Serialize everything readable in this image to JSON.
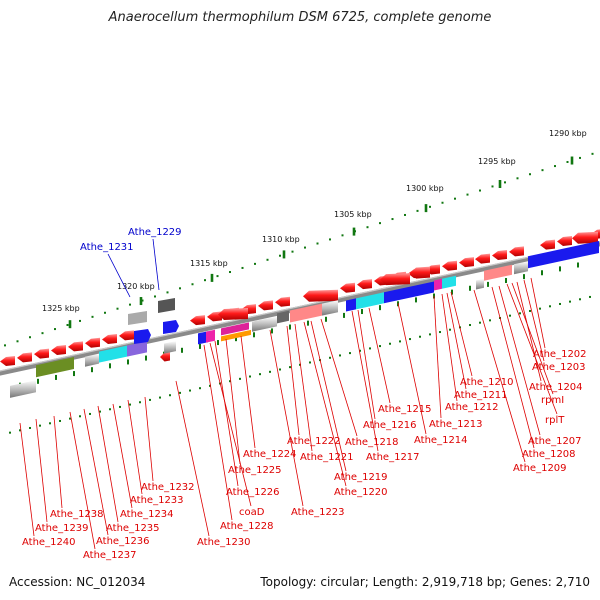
{
  "title": "Anaerocellum thermophilum DSM 6725, complete genome",
  "footer": {
    "accession": "Accession: NC_012034",
    "summary": "Topology: circular; Length: 2,919,718 bp; Genes: 2,710"
  },
  "scale": {
    "ticks": [
      "1290 kbp",
      "1295 kbp",
      "1300 kbp",
      "1305 kbp",
      "1310 kbp",
      "1315 kbp",
      "1320 kbp",
      "1325 kbp"
    ]
  },
  "colors": {
    "gene_forward": "#ee1111",
    "label_red": "#dd0000",
    "label_blue": "#0000cc",
    "backbone": "#8a8a8a",
    "tick": "#117711"
  },
  "genes_blue": [
    "Athe_1229",
    "Athe_1231"
  ],
  "genes_red": [
    "Athe_1202",
    "Athe_1203",
    "Athe_1204",
    "rpmI",
    "rplT",
    "Athe_1207",
    "Athe_1208",
    "Athe_1209",
    "Athe_1210",
    "Athe_1211",
    "Athe_1212",
    "Athe_1213",
    "Athe_1214",
    "Athe_1215",
    "Athe_1216",
    "Athe_1217",
    "Athe_1218",
    "Athe_1219",
    "Athe_1220",
    "Athe_1221",
    "Athe_1222",
    "Athe_1223",
    "Athe_1224",
    "Athe_1225",
    "Athe_1226",
    "coaD",
    "Athe_1228",
    "Athe_1230",
    "Athe_1232",
    "Athe_1233",
    "Athe_1234",
    "Athe_1235",
    "Athe_1236",
    "Athe_1237",
    "Athe_1238",
    "Athe_1239",
    "Athe_1240"
  ]
}
